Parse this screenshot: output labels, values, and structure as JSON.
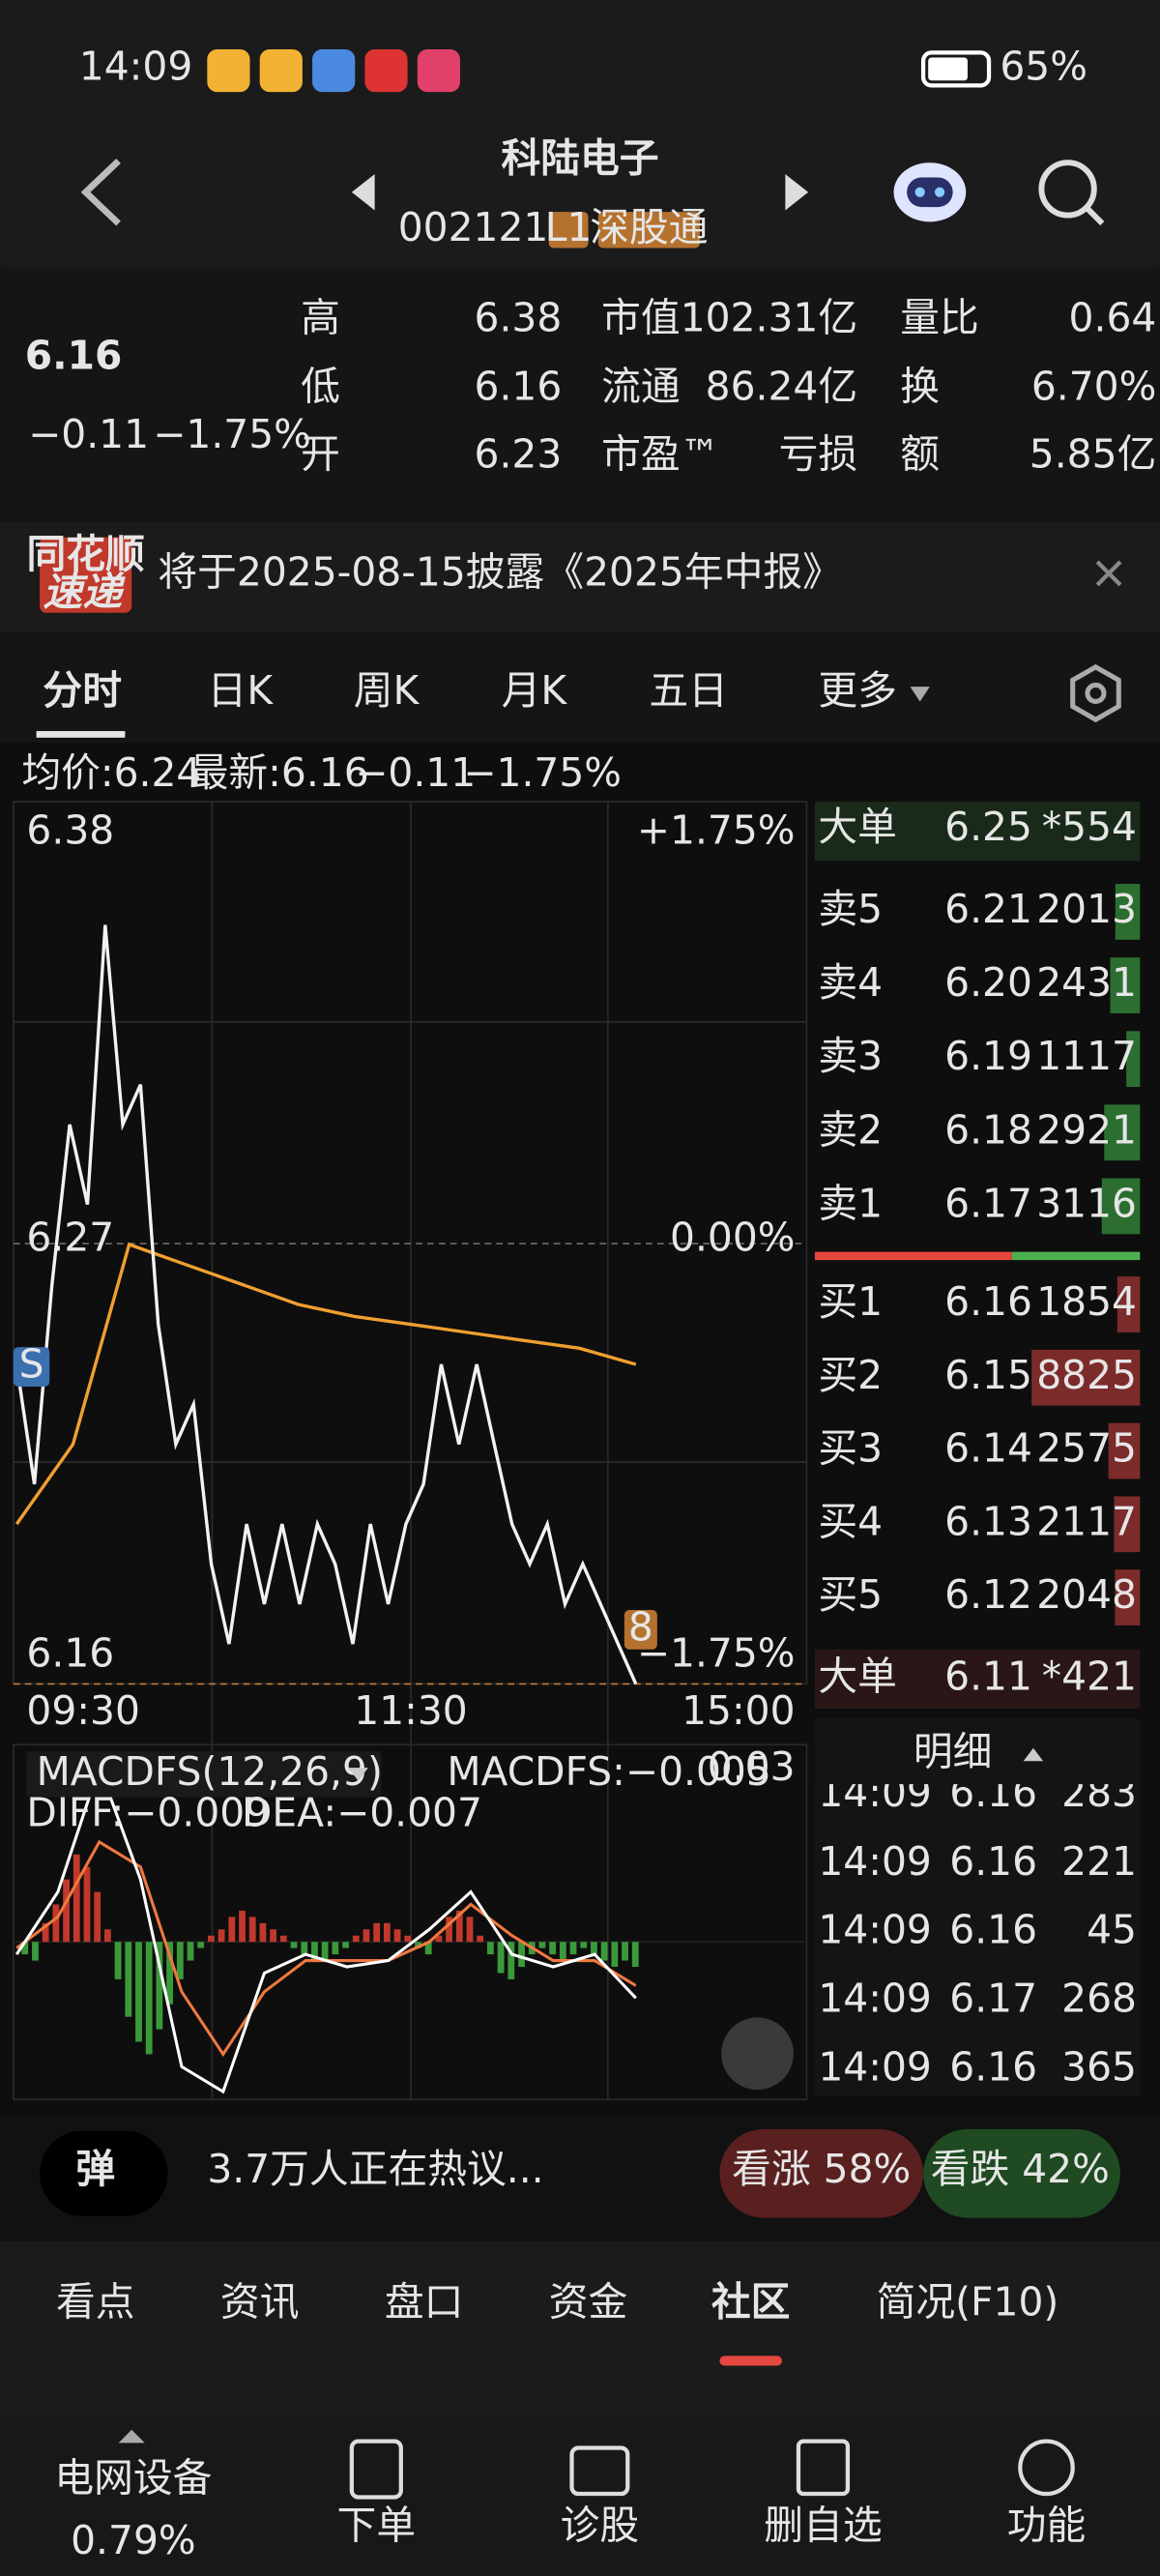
{
  "status_bar": {
    "time": "14:09",
    "battery": "65%"
  },
  "header": {
    "title": "科陆电子",
    "code": "002121",
    "badges": [
      "L1",
      "深股通"
    ]
  },
  "quote": {
    "price": "6.16",
    "change": "−0.11",
    "change_pct": "−1.75%",
    "fields": [
      {
        "label": "高",
        "value": "6.38",
        "color": "#e5473f"
      },
      {
        "label": "低",
        "value": "6.16",
        "color": "#4cb050"
      },
      {
        "label": "开",
        "value": "6.23",
        "color": "#4cb050"
      },
      {
        "label": "市值",
        "value": "102.31亿",
        "color": "#e6e6e6"
      },
      {
        "label": "流通",
        "value": "86.24亿",
        "color": "#e6e6e6"
      },
      {
        "label": "市盈™",
        "value": "亏损",
        "color": "#e6e6e6"
      },
      {
        "label": "量比",
        "value": "0.64",
        "color": "#4cb050"
      },
      {
        "label": "换",
        "value": "6.70%",
        "color": "#e6e6e6"
      },
      {
        "label": "额",
        "value": "5.85亿",
        "color": "#e6e6e6"
      }
    ]
  },
  "notice": {
    "logo": [
      "同花顺",
      "速递"
    ],
    "text": "将于2025-08-15披露《2025年中报》"
  },
  "tabs": [
    "分时",
    "日K",
    "周K",
    "月K",
    "五日",
    "更多"
  ],
  "chart_info": {
    "avg": "均价:6.24",
    "latest": "最新:6.16",
    "change": "−0.11",
    "change_pct": "−1.75%"
  },
  "intraday": {
    "price_labels": [
      "6.38",
      "6.27",
      "6.16"
    ],
    "pct_labels": [
      "+1.75%",
      "0.00%",
      "−1.75%"
    ],
    "ylim": [
      6.16,
      6.38
    ],
    "times": [
      "09:30",
      "11:30",
      "15:00"
    ],
    "price": [
      6.24,
      6.21,
      6.26,
      6.3,
      6.28,
      6.35,
      6.3,
      6.31,
      6.25,
      6.22,
      6.23,
      6.19,
      6.17,
      6.2,
      6.18,
      6.2,
      6.18,
      6.2,
      6.19,
      6.17,
      6.2,
      6.18,
      6.2,
      6.21,
      6.24,
      6.22,
      6.24,
      6.22,
      6.2,
      6.19,
      6.2,
      6.18,
      6.19,
      6.18,
      6.17,
      6.16
    ],
    "avg": [
      6.2,
      6.22,
      6.27,
      6.265,
      6.26,
      6.255,
      6.252,
      6.25,
      6.248,
      6.246,
      6.244,
      6.24
    ],
    "markers": [
      "S",
      "8"
    ]
  },
  "macd": {
    "title": "MACDFS(12,26,9)",
    "value": "MACDFS:−0.005",
    "top": "0.03",
    "diff": "DIFF:−0.009",
    "dea": "DEA:−0.007",
    "hist": [
      -0.002,
      -0.003,
      0.003,
      0.006,
      0.01,
      0.014,
      0.012,
      0.008,
      0.002,
      -0.006,
      -0.012,
      -0.016,
      -0.018,
      -0.014,
      -0.01,
      -0.006,
      -0.003,
      -0.001,
      0.001,
      0.002,
      0.004,
      0.005,
      0.004,
      0.003,
      0.002,
      0.001,
      -0.001,
      -0.002,
      -0.003,
      -0.003,
      -0.002,
      -0.001,
      0.001,
      0.002,
      0.003,
      0.003,
      0.002,
      0.001,
      -0.001,
      -0.002,
      0.001,
      0.004,
      0.005,
      0.004,
      0.001,
      -0.002,
      -0.005,
      -0.006,
      -0.004,
      -0.002,
      -0.001,
      -0.002,
      -0.003,
      -0.002,
      -0.001,
      -0.002,
      -0.003,
      -0.004,
      -0.003,
      -0.004
    ],
    "diff_line": [
      -0.002,
      0.008,
      0.028,
      0.01,
      -0.02,
      -0.024,
      -0.005,
      -0.002,
      -0.004,
      -0.003,
      0.002,
      0.008,
      -0.002,
      -0.004,
      -0.002,
      -0.009
    ],
    "dea_line": [
      -0.001,
      0.004,
      0.016,
      0.012,
      -0.008,
      -0.018,
      -0.008,
      -0.003,
      -0.003,
      -0.003,
      0.0,
      0.006,
      0.001,
      -0.003,
      -0.003,
      -0.007
    ]
  },
  "order_book": {
    "big_top": {
      "label": "大单",
      "price": "6.25",
      "volume": "*554"
    },
    "asks": [
      {
        "label": "卖5",
        "price": "6.21",
        "volume": 2013
      },
      {
        "label": "卖4",
        "price": "6.20",
        "volume": 2431
      },
      {
        "label": "卖3",
        "price": "6.19",
        "volume": 1117
      },
      {
        "label": "卖2",
        "price": "6.18",
        "volume": 2921
      },
      {
        "label": "卖1",
        "price": "6.17",
        "volume": 3116
      }
    ],
    "bids": [
      {
        "label": "买1",
        "price": "6.16",
        "volume": 1854
      },
      {
        "label": "买2",
        "price": "6.15",
        "volume": 8825
      },
      {
        "label": "买3",
        "price": "6.14",
        "volume": 2575
      },
      {
        "label": "买4",
        "price": "6.13",
        "volume": 2117
      },
      {
        "label": "买5",
        "price": "6.12",
        "volume": 2048
      }
    ],
    "big_bottom": {
      "label": "大单",
      "price": "6.11",
      "volume": "*421"
    }
  },
  "detail": {
    "title": "明细",
    "trades": [
      {
        "time": "14:09",
        "price": "6.16",
        "volume": 283,
        "color": "#4cb050"
      },
      {
        "time": "14:09",
        "price": "6.16",
        "volume": 221,
        "color": "#4cb050"
      },
      {
        "time": "14:09",
        "price": "6.16",
        "volume": 45,
        "color": "#4cb050"
      },
      {
        "time": "14:09",
        "price": "6.17",
        "volume": 268,
        "color": "#e5473f"
      },
      {
        "time": "14:09",
        "price": "6.16",
        "volume": 365,
        "color": "#4cb050"
      }
    ]
  },
  "discussion": {
    "button": "弹",
    "text": "3.7万人正在热议...",
    "up": "看涨 58%",
    "down": "看跌 42%"
  },
  "section_tabs": [
    "看点",
    "资讯",
    "盘口",
    "资金",
    "社区",
    "简况(F10)"
  ],
  "nav": {
    "sector": "电网设备",
    "sector_change": "0.79%",
    "items": [
      "下单",
      "诊股",
      "删自选",
      "功能"
    ]
  }
}
